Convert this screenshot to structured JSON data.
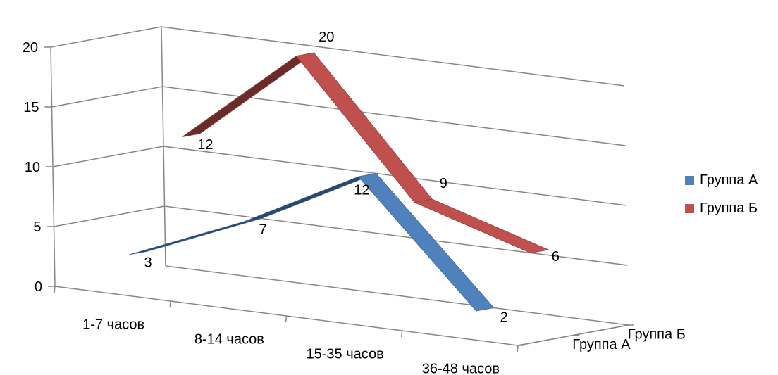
{
  "chart_data": {
    "type": "line",
    "subtype": "3d-line",
    "title": "",
    "xlabel": "",
    "ylabel": "",
    "ylim": [
      0,
      20
    ],
    "y_ticks": [
      "0",
      "5",
      "10",
      "15",
      "20"
    ],
    "categories": [
      "1-7 часов",
      "8-14 часов",
      "15-35 часов",
      "36-48 часов"
    ],
    "depth_labels": [
      "Группа А",
      "Группа Б"
    ],
    "grid": true,
    "legend_position": "right",
    "series": [
      {
        "name": "Группа А",
        "values": [
          3,
          7,
          12,
          2
        ],
        "labels": [
          "3",
          "7",
          "12",
          "2"
        ],
        "color": "#4F81BD"
      },
      {
        "name": "Группа Б",
        "values": [
          12,
          20,
          9,
          6
        ],
        "labels": [
          "12",
          "20",
          "9",
          "6"
        ],
        "color": "#C0504D"
      }
    ]
  }
}
